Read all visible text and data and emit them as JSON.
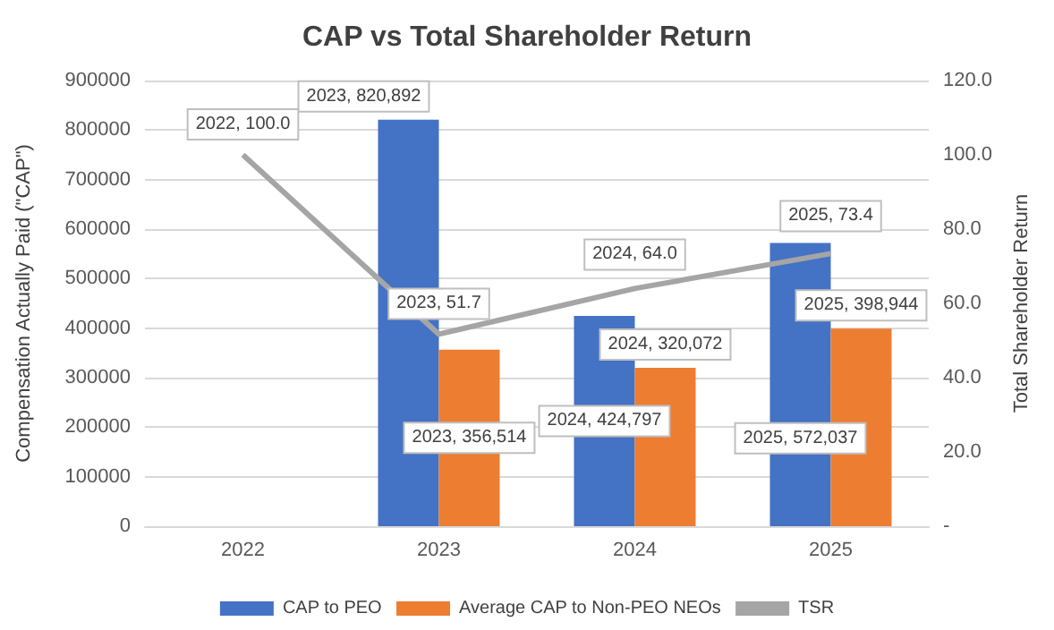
{
  "chart_data": {
    "type": "bar",
    "title": "CAP vs Total Shareholder Return",
    "ylabel": "Compensation Actually Paid (\"CAP\")",
    "y2label": "Total Shareholder Return",
    "categories": [
      "2022",
      "2023",
      "2024",
      "2025"
    ],
    "series": [
      {
        "name": "CAP to PEO",
        "color": "#4472c4",
        "values": [
          null,
          820892,
          424797,
          572037
        ],
        "value_labels": [
          null,
          "2023, 820,892",
          "2024, 424,797",
          "2025, 572,037"
        ]
      },
      {
        "name": "Average CAP to Non-PEO NEOs",
        "color": "#ed7d31",
        "values": [
          null,
          356514,
          320072,
          398944
        ],
        "value_labels": [
          null,
          "2023, 356,514",
          "2024, 320,072",
          "2025, 398,944"
        ]
      },
      {
        "name": "TSR",
        "type": "line",
        "axis": "y2",
        "color": "#a5a5a5",
        "marker": "none",
        "values": [
          100.0,
          51.7,
          64.0,
          73.4
        ],
        "value_labels": [
          "2022, 100.0",
          "2023, 51.7",
          "2024, 64.0",
          "2025, 73.4"
        ]
      }
    ],
    "ylim": [
      0,
      900000
    ],
    "yticks": [
      0,
      100000,
      200000,
      300000,
      400000,
      500000,
      600000,
      700000,
      800000,
      900000
    ],
    "y2lim": [
      0,
      120
    ],
    "y2ticks": [
      {
        "value": 0,
        "label": "-"
      },
      {
        "value": 20,
        "label": "20.0"
      },
      {
        "value": 40,
        "label": "40.0"
      },
      {
        "value": 60,
        "label": "60.0"
      },
      {
        "value": 80,
        "label": "80.0"
      },
      {
        "value": 100,
        "label": "100.0"
      },
      {
        "value": 120,
        "label": "120.0"
      }
    ],
    "grid": "y",
    "legend": "bottom"
  }
}
